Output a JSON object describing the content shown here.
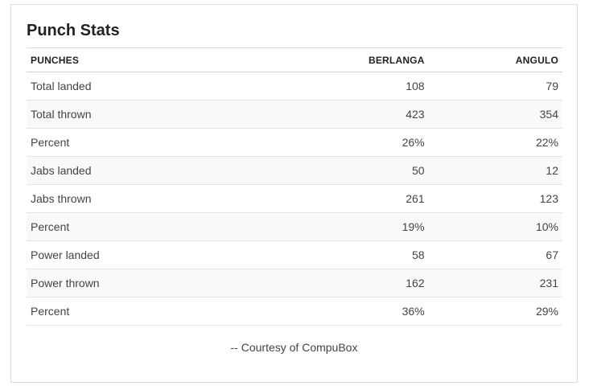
{
  "title": "Punch Stats",
  "table": {
    "headers": [
      "PUNCHES",
      "BERLANGA",
      "ANGULO"
    ],
    "rows": [
      [
        "Total landed",
        "108",
        "79"
      ],
      [
        "Total thrown",
        "423",
        "354"
      ],
      [
        "Percent",
        "26%",
        "22%"
      ],
      [
        "Jabs landed",
        "50",
        "12"
      ],
      [
        "Jabs thrown",
        "261",
        "123"
      ],
      [
        "Percent",
        "19%",
        "10%"
      ],
      [
        "Power landed",
        "58",
        "67"
      ],
      [
        "Power thrown",
        "162",
        "231"
      ],
      [
        "Percent",
        "36%",
        "29%"
      ]
    ]
  },
  "credit": "-- Courtesy of CompuBox"
}
